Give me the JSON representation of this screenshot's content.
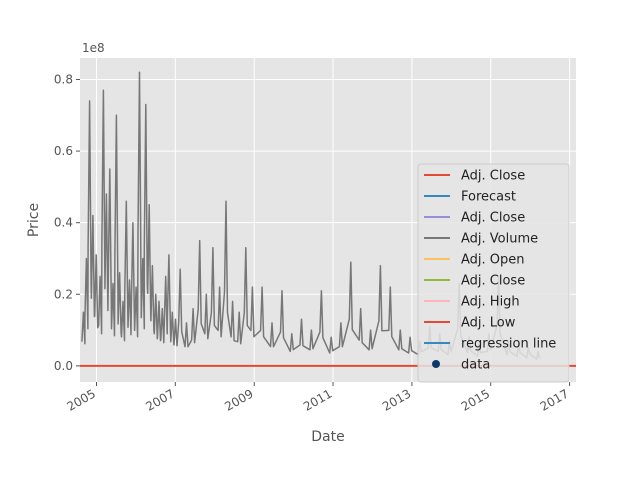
{
  "chart_data": {
    "type": "line",
    "title": "",
    "xlabel": "Date",
    "ylabel": "Price",
    "y_offset_label": "1e8",
    "xlim": [
      "2004-08-01",
      "2017-03-01"
    ],
    "ylim": [
      -0.045,
      0.86
    ],
    "x_ticks": [
      "2005",
      "2007",
      "2009",
      "2011",
      "2013",
      "2015",
      "2017"
    ],
    "y_ticks": [
      "0.0",
      "0.2",
      "0.4",
      "0.6",
      "0.8"
    ],
    "grid": true,
    "legend_position": "center-right",
    "legend": [
      {
        "label": "Adj. Close",
        "color": "#E24A33",
        "kind": "line"
      },
      {
        "label": "Forecast",
        "color": "#348ABD",
        "kind": "line"
      },
      {
        "label": "Adj. Close",
        "color": "#988ED5",
        "kind": "line"
      },
      {
        "label": "Adj. Volume",
        "color": "#777777",
        "kind": "line"
      },
      {
        "label": "Adj. Open",
        "color": "#FBC15E",
        "kind": "line"
      },
      {
        "label": "Adj. Close",
        "color": "#8EBA42",
        "kind": "line"
      },
      {
        "label": "Adj. High",
        "color": "#FFB5B8",
        "kind": "line"
      },
      {
        "label": "Adj. Low",
        "color": "#E24A33",
        "kind": "line"
      },
      {
        "label": "regression line",
        "color": "#348ABD",
        "kind": "line"
      },
      {
        "label": "data",
        "color": "#0B3B6B",
        "kind": "marker"
      }
    ],
    "series": [
      {
        "name": "Adj. Volume",
        "color": "#777777",
        "x": [
          "2004-08-19",
          "2004-09-15",
          "2004-10-15",
          "2004-11-15",
          "2004-12-15",
          "2005-01-20",
          "2005-02-20",
          "2005-03-20",
          "2005-04-20",
          "2005-05-20",
          "2005-06-20",
          "2005-07-20",
          "2005-08-20",
          "2005-09-20",
          "2005-10-20",
          "2005-11-20",
          "2005-12-20",
          "2006-01-20",
          "2006-02-20",
          "2006-03-20",
          "2006-04-20",
          "2006-05-20",
          "2006-06-20",
          "2006-07-20",
          "2006-08-20",
          "2006-09-20",
          "2006-10-20",
          "2006-11-20",
          "2006-12-20",
          "2007-02-01",
          "2007-04-01",
          "2007-06-01",
          "2007-08-01",
          "2007-10-01",
          "2007-12-01",
          "2008-02-01",
          "2008-04-01",
          "2008-06-01",
          "2008-08-01",
          "2008-10-01",
          "2008-12-01",
          "2009-03-01",
          "2009-06-01",
          "2009-09-01",
          "2009-12-01",
          "2010-03-01",
          "2010-06-01",
          "2010-09-01",
          "2010-12-01",
          "2011-03-01",
          "2011-06-01",
          "2011-09-01",
          "2011-12-01",
          "2012-03-01",
          "2012-06-01",
          "2012-09-01",
          "2012-12-01",
          "2013-03-01",
          "2013-06-01",
          "2013-09-01",
          "2013-12-01",
          "2014-03-01",
          "2014-06-01",
          "2014-09-01",
          "2014-12-01",
          "2015-03-01",
          "2015-06-01",
          "2015-09-01",
          "2015-12-01",
          "2016-03-01"
        ],
        "values": [
          0.15,
          0.3,
          0.74,
          0.42,
          0.31,
          0.25,
          0.77,
          0.48,
          0.55,
          0.23,
          0.7,
          0.26,
          0.18,
          0.46,
          0.24,
          0.4,
          0.22,
          0.82,
          0.3,
          0.73,
          0.45,
          0.28,
          0.2,
          0.18,
          0.16,
          0.25,
          0.31,
          0.15,
          0.13,
          0.27,
          0.12,
          0.16,
          0.35,
          0.2,
          0.33,
          0.22,
          0.46,
          0.18,
          0.15,
          0.33,
          0.22,
          0.22,
          0.12,
          0.21,
          0.09,
          0.13,
          0.1,
          0.21,
          0.08,
          0.12,
          0.29,
          0.16,
          0.1,
          0.28,
          0.22,
          0.1,
          0.08,
          0.07,
          0.11,
          0.09,
          0.07,
          0.23,
          0.08,
          0.06,
          0.09,
          0.25,
          0.07,
          0.06,
          0.05,
          0.04
        ]
      },
      {
        "name": "Adj. Close",
        "color": "#E24A33",
        "x": [
          "2004-08-01",
          "2017-03-01"
        ],
        "values": [
          0.0,
          0.0
        ]
      }
    ]
  }
}
